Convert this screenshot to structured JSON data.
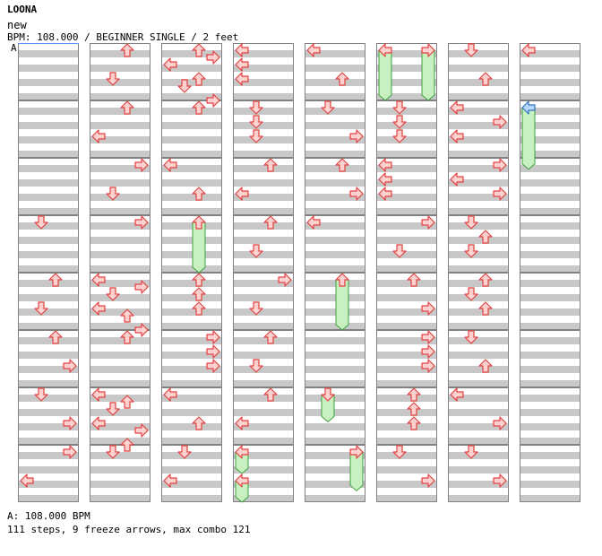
{
  "song_title": "LOONA",
  "subtitle": "new",
  "bpm_line": "BPM: 108.000 / BEGINNER SINGLE / 2 feet",
  "section_label": "A",
  "footer": {
    "bpm_text": "A: 108.000 BPM",
    "stats_text": "111 steps, 9 freeze arrows, max combo 121"
  },
  "colors": {
    "band": "#c8c8c8",
    "arrow_fill": "#ffd0d0",
    "arrow_stroke": "#e04040",
    "freeze_fill": "#c8f0c0",
    "freeze_stroke": "#40a040",
    "freeze_head_fill": "#b8d8ff",
    "freeze_head_stroke": "#3070c0"
  },
  "chart": {
    "columns": 8,
    "measures_per_column": 8,
    "lanes": [
      "left",
      "down",
      "up",
      "right"
    ],
    "steps": [
      [
        0,
        3,
        "down"
      ],
      [
        0,
        4,
        "up"
      ],
      [
        0,
        4,
        "down"
      ],
      [
        0,
        5,
        "up"
      ],
      [
        0,
        5,
        "right"
      ],
      [
        0,
        6,
        "down"
      ],
      [
        0,
        6,
        "right"
      ],
      [
        0,
        7,
        "right"
      ],
      [
        0,
        7,
        "left"
      ],
      [
        1,
        0,
        "up"
      ],
      [
        1,
        0,
        "down"
      ],
      [
        1,
        1,
        "up"
      ],
      [
        1,
        1,
        "left"
      ],
      [
        1,
        2,
        "right"
      ],
      [
        1,
        2,
        "down"
      ],
      [
        1,
        3,
        "right"
      ],
      [
        1,
        4,
        "left"
      ],
      [
        1,
        4,
        "right"
      ],
      [
        1,
        4,
        "down"
      ],
      [
        1,
        4,
        "up"
      ],
      [
        1,
        4,
        "left"
      ],
      [
        1,
        4,
        "right"
      ],
      [
        1,
        5,
        "up"
      ],
      [
        1,
        6,
        "left"
      ],
      [
        1,
        6,
        "up"
      ],
      [
        1,
        6,
        "down"
      ],
      [
        1,
        6,
        "right"
      ],
      [
        1,
        6,
        "left"
      ],
      [
        1,
        6,
        "up"
      ],
      [
        1,
        7,
        "down"
      ],
      [
        2,
        0,
        "up"
      ],
      [
        2,
        0,
        "right"
      ],
      [
        2,
        0,
        "left"
      ],
      [
        2,
        0,
        "down"
      ],
      [
        2,
        0,
        "up"
      ],
      [
        2,
        0,
        "right"
      ],
      [
        2,
        1,
        "up"
      ],
      [
        2,
        2,
        "left"
      ],
      [
        2,
        2,
        "up"
      ],
      [
        2,
        4,
        "up"
      ],
      [
        2,
        4,
        "up"
      ],
      [
        2,
        4,
        "up"
      ],
      [
        2,
        5,
        "right"
      ],
      [
        2,
        5,
        "right"
      ],
      [
        2,
        5,
        "right"
      ],
      [
        2,
        6,
        "left"
      ],
      [
        2,
        6,
        "up"
      ],
      [
        2,
        7,
        "down"
      ],
      [
        2,
        7,
        "left"
      ],
      [
        3,
        0,
        "left"
      ],
      [
        3,
        0,
        "left"
      ],
      [
        3,
        0,
        "left"
      ],
      [
        3,
        1,
        "down"
      ],
      [
        3,
        1,
        "down"
      ],
      [
        3,
        1,
        "down"
      ],
      [
        3,
        2,
        "up"
      ],
      [
        3,
        2,
        "left"
      ],
      [
        3,
        3,
        "up"
      ],
      [
        3,
        3,
        "down"
      ],
      [
        3,
        4,
        "right"
      ],
      [
        3,
        4,
        "down"
      ],
      [
        3,
        5,
        "up"
      ],
      [
        3,
        5,
        "down"
      ],
      [
        3,
        6,
        "up"
      ],
      [
        3,
        6,
        "left"
      ],
      [
        4,
        0,
        "left"
      ],
      [
        4,
        0,
        "up"
      ],
      [
        4,
        1,
        "down"
      ],
      [
        4,
        1,
        "right"
      ],
      [
        4,
        2,
        "up"
      ],
      [
        4,
        2,
        "right"
      ],
      [
        4,
        3,
        "left"
      ],
      [
        5,
        1,
        "down"
      ],
      [
        5,
        1,
        "down"
      ],
      [
        5,
        1,
        "down"
      ],
      [
        5,
        2,
        "left"
      ],
      [
        5,
        2,
        "left"
      ],
      [
        5,
        2,
        "left"
      ],
      [
        5,
        3,
        "right"
      ],
      [
        5,
        3,
        "down"
      ],
      [
        5,
        4,
        "up"
      ],
      [
        5,
        4,
        "right"
      ],
      [
        5,
        5,
        "right"
      ],
      [
        5,
        5,
        "right"
      ],
      [
        5,
        5,
        "right"
      ],
      [
        5,
        6,
        "up"
      ],
      [
        5,
        6,
        "up"
      ],
      [
        5,
        6,
        "up"
      ],
      [
        5,
        7,
        "down"
      ],
      [
        5,
        7,
        "right"
      ],
      [
        6,
        0,
        "down"
      ],
      [
        6,
        0,
        "up"
      ],
      [
        6,
        1,
        "left"
      ],
      [
        6,
        1,
        "right"
      ],
      [
        6,
        1,
        "left"
      ],
      [
        6,
        2,
        "right"
      ],
      [
        6,
        2,
        "left"
      ],
      [
        6,
        2,
        "right"
      ],
      [
        6,
        3,
        "down"
      ],
      [
        6,
        3,
        "up"
      ],
      [
        6,
        3,
        "down"
      ],
      [
        6,
        4,
        "up"
      ],
      [
        6,
        4,
        "down"
      ],
      [
        6,
        4,
        "up"
      ],
      [
        6,
        5,
        "down"
      ],
      [
        6,
        5,
        "up"
      ],
      [
        6,
        6,
        "left"
      ],
      [
        6,
        6,
        "right"
      ],
      [
        6,
        7,
        "down"
      ],
      [
        6,
        7,
        "right"
      ],
      [
        7,
        0,
        "left"
      ]
    ],
    "freezes": [
      [
        2,
        3.0,
        4.0,
        "up"
      ],
      [
        3,
        7.0,
        7.5,
        "left"
      ],
      [
        3,
        7.5,
        8.0,
        "left"
      ],
      [
        4,
        4.0,
        5.0,
        "up"
      ],
      [
        4,
        6.0,
        6.6,
        "down"
      ],
      [
        4,
        7.0,
        7.8,
        "right"
      ],
      [
        5,
        0.0,
        1.0,
        "left"
      ],
      [
        5,
        0.0,
        1.0,
        "right"
      ],
      [
        7,
        1.0,
        2.2,
        "left"
      ]
    ]
  }
}
